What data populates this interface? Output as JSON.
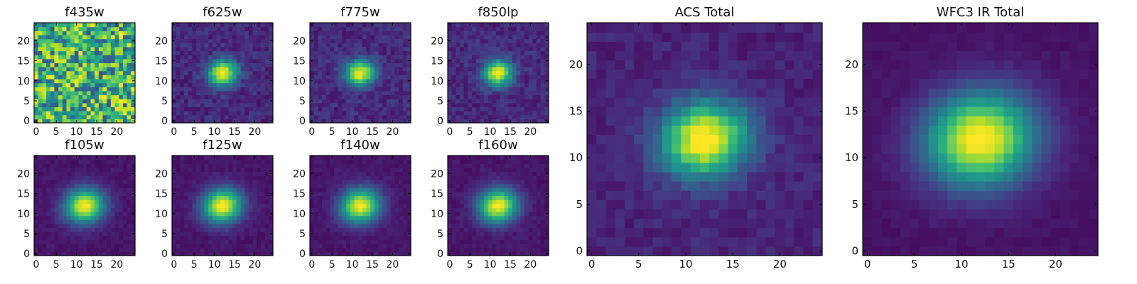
{
  "colors": {
    "viridis": [
      "#440154",
      "#482475",
      "#414487",
      "#355f8d",
      "#2a788e",
      "#21918c",
      "#22a884",
      "#44bf70",
      "#7ad151",
      "#bddf26",
      "#fde725"
    ]
  },
  "chart_data": [
    {
      "id": "f435w",
      "type": "heatmap",
      "title": "f435w",
      "grid_size": 25,
      "xlim": [
        0,
        24
      ],
      "ylim": [
        0,
        24
      ],
      "xticks": [
        0,
        5,
        10,
        15,
        20
      ],
      "yticks": [
        0,
        5,
        10,
        15,
        20
      ],
      "pattern": "noise",
      "center": [
        12.5,
        12.5
      ],
      "colormap": "viridis"
    },
    {
      "id": "f625w",
      "type": "heatmap",
      "title": "f625w",
      "grid_size": 25,
      "xlim": [
        0,
        24
      ],
      "ylim": [
        0,
        24
      ],
      "xticks": [
        0,
        5,
        10,
        15,
        20
      ],
      "yticks": [
        0,
        5,
        10,
        15,
        20
      ],
      "pattern": "compact-source",
      "center": [
        12.5,
        12.5
      ],
      "colormap": "viridis"
    },
    {
      "id": "f775w",
      "type": "heatmap",
      "title": "f775w",
      "grid_size": 25,
      "xlim": [
        0,
        24
      ],
      "ylim": [
        0,
        24
      ],
      "xticks": [
        0,
        5,
        10,
        15,
        20
      ],
      "yticks": [
        0,
        5,
        10,
        15,
        20
      ],
      "pattern": "compact-source",
      "center": [
        12.5,
        12.5
      ],
      "colormap": "viridis"
    },
    {
      "id": "f850lp",
      "type": "heatmap",
      "title": "f850lp",
      "grid_size": 25,
      "xlim": [
        0,
        24
      ],
      "ylim": [
        0,
        24
      ],
      "xticks": [
        0,
        5,
        10,
        15,
        20
      ],
      "yticks": [
        0,
        5,
        10,
        15,
        20
      ],
      "pattern": "compact-source",
      "center": [
        12.5,
        12.5
      ],
      "colormap": "viridis"
    },
    {
      "id": "f105w",
      "type": "heatmap",
      "title": "f105w",
      "grid_size": 25,
      "xlim": [
        0,
        24
      ],
      "ylim": [
        0,
        24
      ],
      "xticks": [
        0,
        5,
        10,
        15,
        20
      ],
      "yticks": [
        0,
        5,
        10,
        15,
        20
      ],
      "pattern": "extended-source",
      "center": [
        12.5,
        12.5
      ],
      "colormap": "viridis"
    },
    {
      "id": "f125w",
      "type": "heatmap",
      "title": "f125w",
      "grid_size": 25,
      "xlim": [
        0,
        24
      ],
      "ylim": [
        0,
        24
      ],
      "xticks": [
        0,
        5,
        10,
        15,
        20
      ],
      "yticks": [
        0,
        5,
        10,
        15,
        20
      ],
      "pattern": "extended-source",
      "center": [
        12.5,
        12.5
      ],
      "colormap": "viridis"
    },
    {
      "id": "f140w",
      "type": "heatmap",
      "title": "f140w",
      "grid_size": 25,
      "xlim": [
        0,
        24
      ],
      "ylim": [
        0,
        24
      ],
      "xticks": [
        0,
        5,
        10,
        15,
        20
      ],
      "yticks": [
        0,
        5,
        10,
        15,
        20
      ],
      "pattern": "extended-source",
      "center": [
        12.5,
        12.5
      ],
      "colormap": "viridis"
    },
    {
      "id": "f160w",
      "type": "heatmap",
      "title": "f160w",
      "grid_size": 25,
      "xlim": [
        0,
        24
      ],
      "ylim": [
        0,
        24
      ],
      "xticks": [
        0,
        5,
        10,
        15,
        20
      ],
      "yticks": [
        0,
        5,
        10,
        15,
        20
      ],
      "pattern": "extended-source",
      "center": [
        12.5,
        12.5
      ],
      "colormap": "viridis"
    },
    {
      "id": "acs-total",
      "type": "heatmap",
      "title": "ACS Total",
      "grid_size": 25,
      "xlim": [
        0,
        24
      ],
      "ylim": [
        0,
        24
      ],
      "xticks": [
        0,
        5,
        10,
        15,
        20
      ],
      "yticks": [
        0,
        5,
        10,
        15,
        20
      ],
      "pattern": "compact-source-wide",
      "center": [
        12.5,
        12.5
      ],
      "colormap": "viridis"
    },
    {
      "id": "wfc3-ir-total",
      "type": "heatmap",
      "title": "WFC3 IR Total",
      "grid_size": 25,
      "xlim": [
        0,
        24
      ],
      "ylim": [
        0,
        24
      ],
      "xticks": [
        0,
        5,
        10,
        15,
        20
      ],
      "yticks": [
        0,
        5,
        10,
        15,
        20
      ],
      "pattern": "extended-source-wide",
      "center": [
        12.5,
        12.5
      ],
      "colormap": "viridis"
    }
  ]
}
